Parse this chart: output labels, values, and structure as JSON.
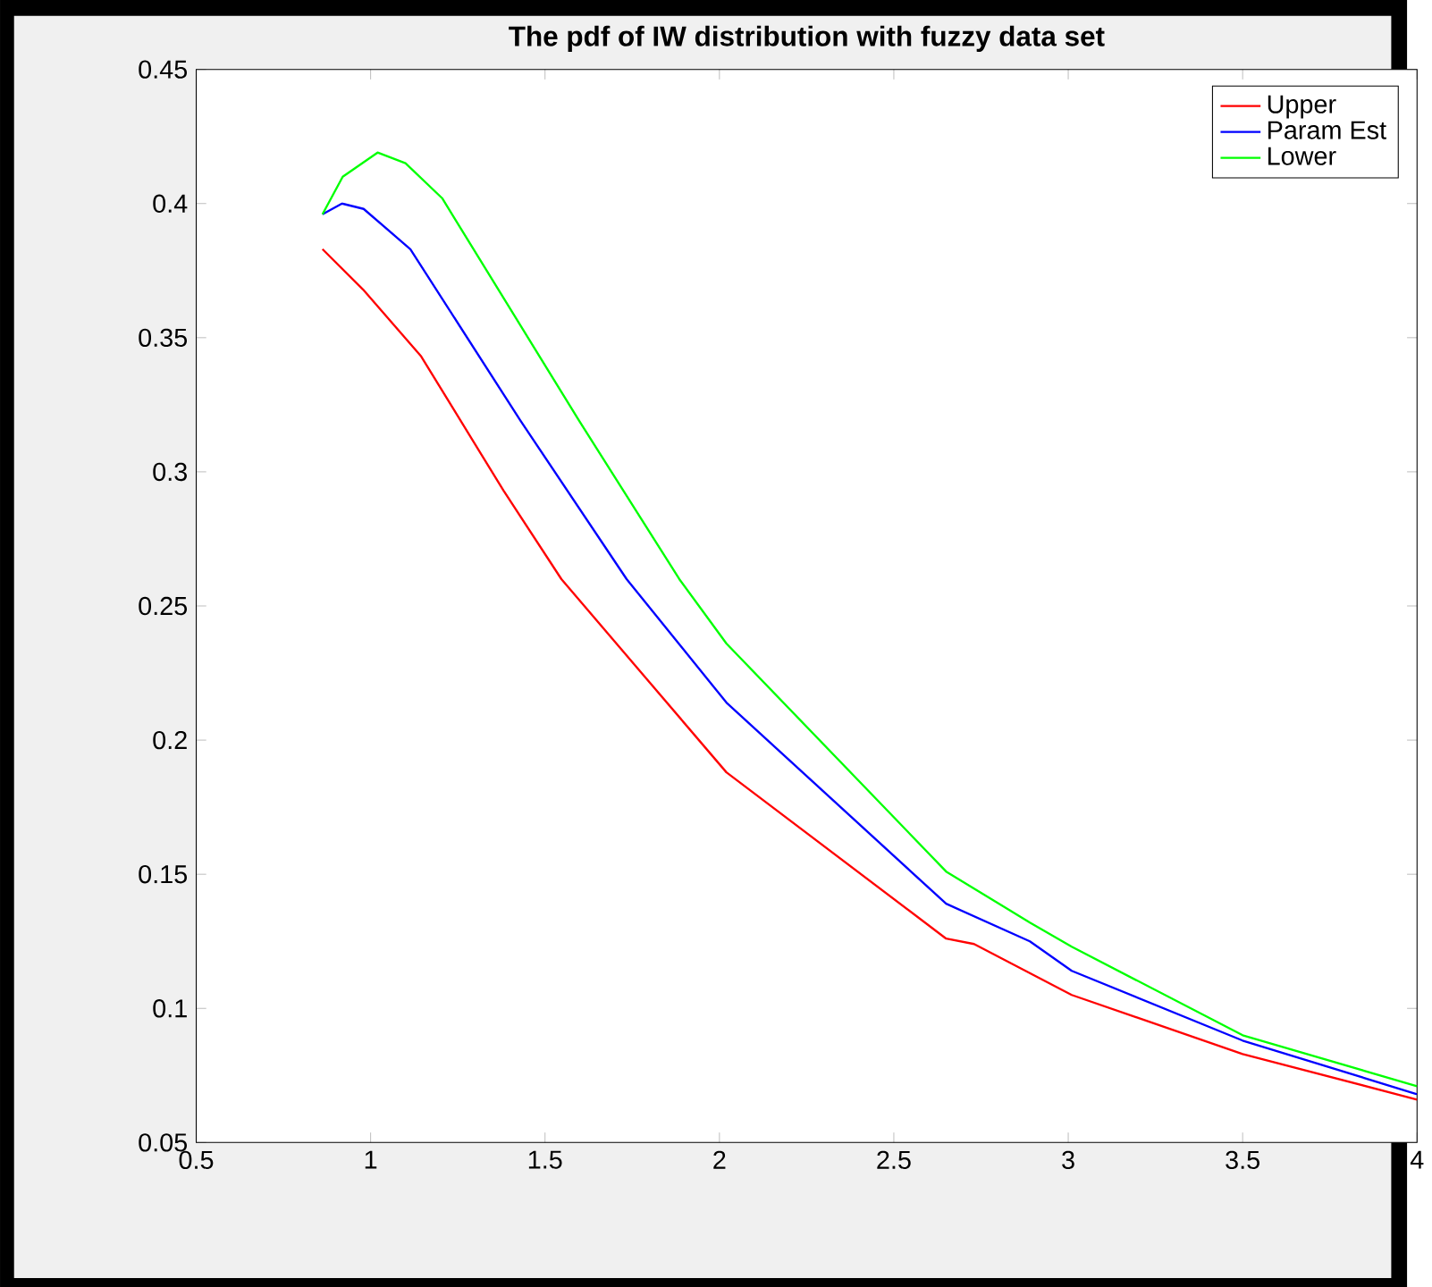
{
  "chart_data": {
    "type": "line",
    "title": "The pdf of IW distribution with fuzzy data set",
    "xlim": [
      0.5,
      4
    ],
    "ylim": [
      0.05,
      0.45
    ],
    "xticks": [
      0.5,
      1,
      1.5,
      2,
      2.5,
      3,
      3.5,
      4
    ],
    "yticks": [
      0.05,
      0.1,
      0.15,
      0.2,
      0.25,
      0.3,
      0.35,
      0.4,
      0.45
    ],
    "legend": "top right",
    "grid": false,
    "marker": "none",
    "line_style": "solid",
    "series": [
      {
        "name": "Upper",
        "color": "#ff0000",
        "x": [
          0.862,
          0.978,
          1.145,
          1.381,
          1.547,
          2.02,
          2.65,
          2.73,
          3.01,
          3.5,
          4
        ],
        "values": [
          0.383,
          0.368,
          0.343,
          0.293,
          0.26,
          0.188,
          0.126,
          0.124,
          0.105,
          0.083,
          0.066
        ]
      },
      {
        "name": "Param Est",
        "color": "#0000ff",
        "x": [
          0.862,
          0.918,
          0.98,
          1.114,
          1.43,
          1.734,
          2.02,
          2.65,
          2.89,
          3.01,
          3.5,
          4
        ],
        "values": [
          0.396,
          0.4,
          0.398,
          0.383,
          0.319,
          0.26,
          0.214,
          0.139,
          0.125,
          0.114,
          0.088,
          0.068
        ]
      },
      {
        "name": "Lower",
        "color": "#00ff00",
        "x": [
          0.862,
          0.92,
          1.02,
          1.1,
          1.205,
          1.598,
          1.885,
          2.02,
          2.65,
          2.89,
          3.01,
          3.5,
          4
        ],
        "values": [
          0.396,
          0.41,
          0.419,
          0.415,
          0.402,
          0.319,
          0.26,
          0.236,
          0.151,
          0.132,
          0.123,
          0.09,
          0.071
        ]
      }
    ]
  }
}
